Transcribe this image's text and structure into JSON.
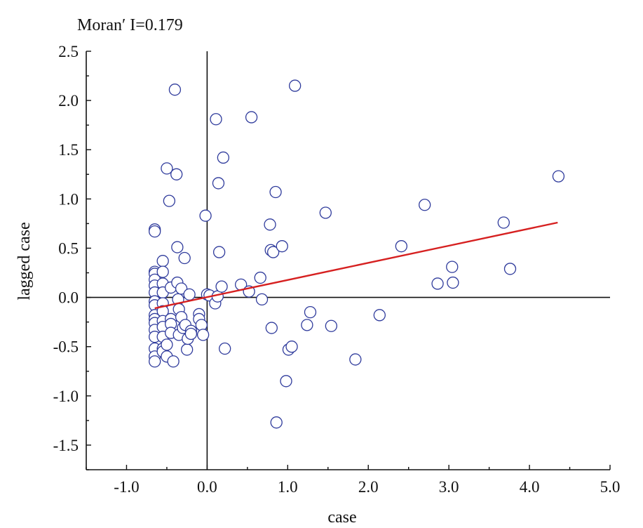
{
  "chart_data": {
    "type": "scatter",
    "title": "Moran′ I=0.179",
    "xlabel": "case",
    "ylabel": "lagged case",
    "xlim": [
      -1.5,
      5.0
    ],
    "ylim": [
      -1.75,
      2.5
    ],
    "x_ticks": [
      -1.0,
      0.0,
      1.0,
      2.0,
      3.0,
      4.0,
      5.0
    ],
    "x_tick_labels": [
      "-1.0",
      "0.0",
      "1.0",
      "2.0",
      "3.0",
      "4.0",
      "5.0"
    ],
    "y_ticks": [
      2.5,
      2.0,
      1.5,
      1.0,
      0.5,
      0.0,
      -0.5,
      -1.0,
      -1.5
    ],
    "y_tick_labels": [
      "2.5",
      "2.0",
      "1.5",
      "1.0",
      "0.5",
      "0.0",
      "-0.5",
      "-1.0",
      "-1.5"
    ],
    "grid": false,
    "reference_lines": {
      "x": 0,
      "y": 0
    },
    "fit_line": {
      "x": [
        -0.65,
        4.35
      ],
      "y": [
        -0.11,
        0.76
      ],
      "color": "#d62020"
    },
    "marker_color": "#2f3b9c",
    "series": [
      {
        "x": [
          -0.65,
          -0.65,
          -0.65,
          -0.65,
          -0.65,
          -0.65,
          -0.65,
          -0.65,
          -0.65,
          -0.65,
          -0.65,
          -0.65,
          -0.65,
          -0.65,
          -0.65,
          -0.65,
          -0.65,
          -0.55,
          -0.55,
          -0.55,
          -0.55,
          -0.55,
          -0.55,
          -0.55,
          -0.55,
          -0.55,
          -0.55,
          -0.55,
          -0.5,
          -0.5,
          -0.5,
          -0.47,
          -0.45,
          -0.45,
          -0.45,
          -0.45,
          -0.42,
          -0.4,
          -0.38,
          -0.37,
          -0.37,
          -0.36,
          -0.35,
          -0.35,
          -0.32,
          -0.32,
          -0.3,
          -0.28,
          -0.27,
          -0.25,
          -0.24,
          -0.22,
          -0.2,
          -0.2,
          -0.1,
          -0.1,
          -0.07,
          -0.05,
          -0.02,
          0.0,
          0.03,
          0.1,
          0.11,
          0.13,
          0.14,
          0.15,
          0.18,
          0.2,
          0.22,
          0.42,
          0.52,
          0.55,
          0.66,
          0.68,
          0.78,
          0.79,
          0.8,
          0.82,
          0.85,
          0.86,
          0.93,
          0.98,
          1.01,
          1.05,
          1.09,
          1.24,
          1.28,
          1.47,
          1.54,
          1.84,
          2.14,
          2.41,
          2.7,
          2.86,
          3.04,
          3.05,
          3.68,
          3.76,
          4.36
        ],
        "y": [
          0.69,
          0.67,
          0.26,
          0.24,
          0.18,
          0.12,
          0.05,
          -0.04,
          -0.08,
          -0.18,
          -0.22,
          -0.26,
          -0.33,
          -0.4,
          -0.52,
          -0.6,
          -0.65,
          0.37,
          0.26,
          0.14,
          0.05,
          -0.06,
          -0.14,
          -0.24,
          -0.3,
          -0.4,
          -0.52,
          -0.55,
          1.31,
          -0.48,
          -0.6,
          0.98,
          0.1,
          -0.22,
          -0.27,
          -0.36,
          -0.65,
          2.11,
          1.25,
          0.51,
          0.15,
          -0.02,
          -0.12,
          -0.38,
          0.09,
          -0.2,
          -0.31,
          0.4,
          -0.28,
          -0.53,
          -0.42,
          0.03,
          -0.34,
          -0.37,
          -0.17,
          -0.22,
          -0.28,
          -0.38,
          0.83,
          0.03,
          0.02,
          -0.06,
          1.81,
          0.01,
          1.16,
          0.46,
          0.11,
          1.42,
          -0.52,
          0.13,
          0.06,
          1.83,
          0.2,
          -0.02,
          0.74,
          0.48,
          -0.31,
          0.46,
          1.07,
          -1.27,
          0.52,
          -0.85,
          -0.53,
          -0.5,
          2.15,
          -0.28,
          -0.15,
          0.86,
          -0.29,
          -0.63,
          -0.18,
          0.52,
          0.94,
          0.14,
          0.31,
          0.15,
          0.76,
          0.29,
          1.23
        ]
      }
    ]
  }
}
